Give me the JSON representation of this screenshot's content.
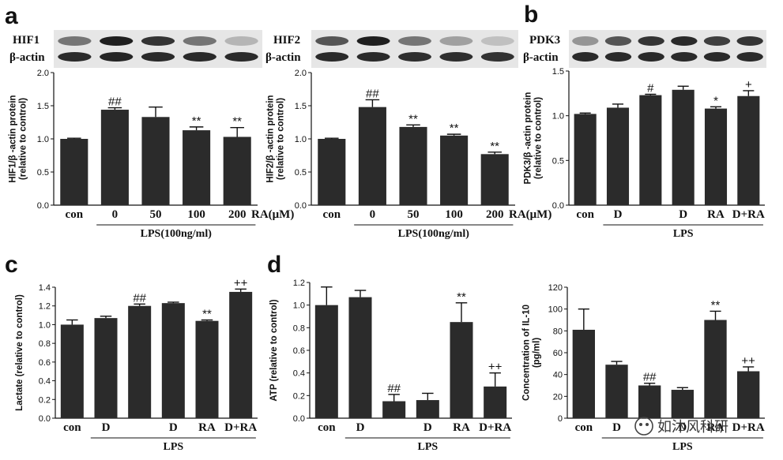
{
  "panel_labels": [
    "a",
    "b",
    "c",
    "d"
  ],
  "blots": [
    {
      "id": "hif1",
      "target": "HIF1",
      "control": "β-actin"
    },
    {
      "id": "hif2",
      "target": "HIF2",
      "control": "β-actin"
    },
    {
      "id": "pdk3",
      "target": "PDK3",
      "control": "β-actin"
    }
  ],
  "watermark": "如沐风科研",
  "chart_data": [
    {
      "id": "hif1",
      "type": "bar",
      "ylabel": [
        "HIF1/β -actin protein",
        "(relative to control)"
      ],
      "ylim": [
        0,
        2.0
      ],
      "yticks": [
        "0.0",
        "0.5",
        "1.0",
        "1.5",
        "2.0"
      ],
      "categories": [
        "con",
        "0",
        "50",
        "100",
        "200"
      ],
      "values": [
        1.0,
        1.44,
        1.33,
        1.13,
        1.03
      ],
      "errors": [
        0.01,
        0.03,
        0.15,
        0.05,
        0.14
      ],
      "annotations": [
        "",
        "##",
        "",
        "**",
        "**"
      ],
      "unit_label": "RA(μM)",
      "group_label": "LPS(100ng/ml)"
    },
    {
      "id": "hif2",
      "type": "bar",
      "ylabel": [
        "HIF2/β -actin protein",
        "(relative to control)"
      ],
      "ylim": [
        0,
        2.0
      ],
      "yticks": [
        "0.0",
        "0.5",
        "1.0",
        "1.5",
        "2.0"
      ],
      "categories": [
        "con",
        "0",
        "50",
        "100",
        "200"
      ],
      "values": [
        1.0,
        1.48,
        1.18,
        1.05,
        0.77
      ],
      "errors": [
        0.01,
        0.11,
        0.03,
        0.02,
        0.03
      ],
      "annotations": [
        "",
        "##",
        "**",
        "**",
        "**"
      ],
      "unit_label": "RA(μM)",
      "group_label": "LPS(100ng/ml)"
    },
    {
      "id": "pdk3",
      "type": "bar",
      "ylabel": [
        "PDK3/β -actin protein",
        "(relative to control)"
      ],
      "ylim": [
        0,
        1.5
      ],
      "yticks": [
        "0.0",
        "0.5",
        "1.0",
        "1.5"
      ],
      "categories": [
        "con",
        "D",
        "",
        "D",
        "RA",
        "D+RA"
      ],
      "values": [
        1.02,
        1.09,
        1.23,
        1.29,
        1.08,
        1.22
      ],
      "errors": [
        0.01,
        0.04,
        0.01,
        0.04,
        0.02,
        0.06
      ],
      "annotations": [
        "",
        "",
        "#",
        "",
        "*",
        "+"
      ],
      "group_label": "LPS"
    },
    {
      "id": "lactate",
      "type": "bar",
      "ylabel": [
        "Lactate (relative to control)"
      ],
      "ylim": [
        0,
        1.4
      ],
      "yticks": [
        "0.0",
        "0.2",
        "0.4",
        "0.6",
        "0.8",
        "1.0",
        "1.2",
        "1.4"
      ],
      "categories": [
        "con",
        "D",
        "",
        "D",
        "RA",
        "D+RA"
      ],
      "values": [
        1.0,
        1.07,
        1.2,
        1.23,
        1.04,
        1.35
      ],
      "errors": [
        0.05,
        0.02,
        0.02,
        0.01,
        0.01,
        0.03
      ],
      "annotations": [
        "",
        "",
        "##",
        "",
        "**",
        "++"
      ],
      "group_label": "LPS"
    },
    {
      "id": "atp",
      "type": "bar",
      "ylabel": [
        "ATP (relative to control)"
      ],
      "ylim": [
        0,
        1.2
      ],
      "yticks": [
        "0.0",
        "0.2",
        "0.4",
        "0.6",
        "0.8",
        "1.0",
        "1.2"
      ],
      "categories": [
        "con",
        "D",
        "",
        "D",
        "RA",
        "D+RA"
      ],
      "values": [
        1.0,
        1.07,
        0.15,
        0.16,
        0.85,
        0.28
      ],
      "errors": [
        0.16,
        0.06,
        0.06,
        0.06,
        0.17,
        0.12
      ],
      "annotations": [
        "",
        "",
        "##",
        "",
        "**",
        "++"
      ],
      "group_label": "LPS"
    },
    {
      "id": "il10",
      "type": "bar",
      "ylabel": [
        "Concentration of IL-10",
        "(pg/ml)"
      ],
      "ylim": [
        0,
        120
      ],
      "yticks": [
        "0",
        "20",
        "40",
        "60",
        "80",
        "100",
        "120"
      ],
      "categories": [
        "con",
        "D",
        "",
        "D",
        "RA",
        "D+RA"
      ],
      "values": [
        81,
        49,
        30,
        26,
        90,
        43
      ],
      "errors": [
        19,
        3,
        2,
        2,
        8,
        4
      ],
      "annotations": [
        "",
        "",
        "##",
        "",
        "**",
        "++"
      ],
      "group_label": "LPS"
    }
  ]
}
